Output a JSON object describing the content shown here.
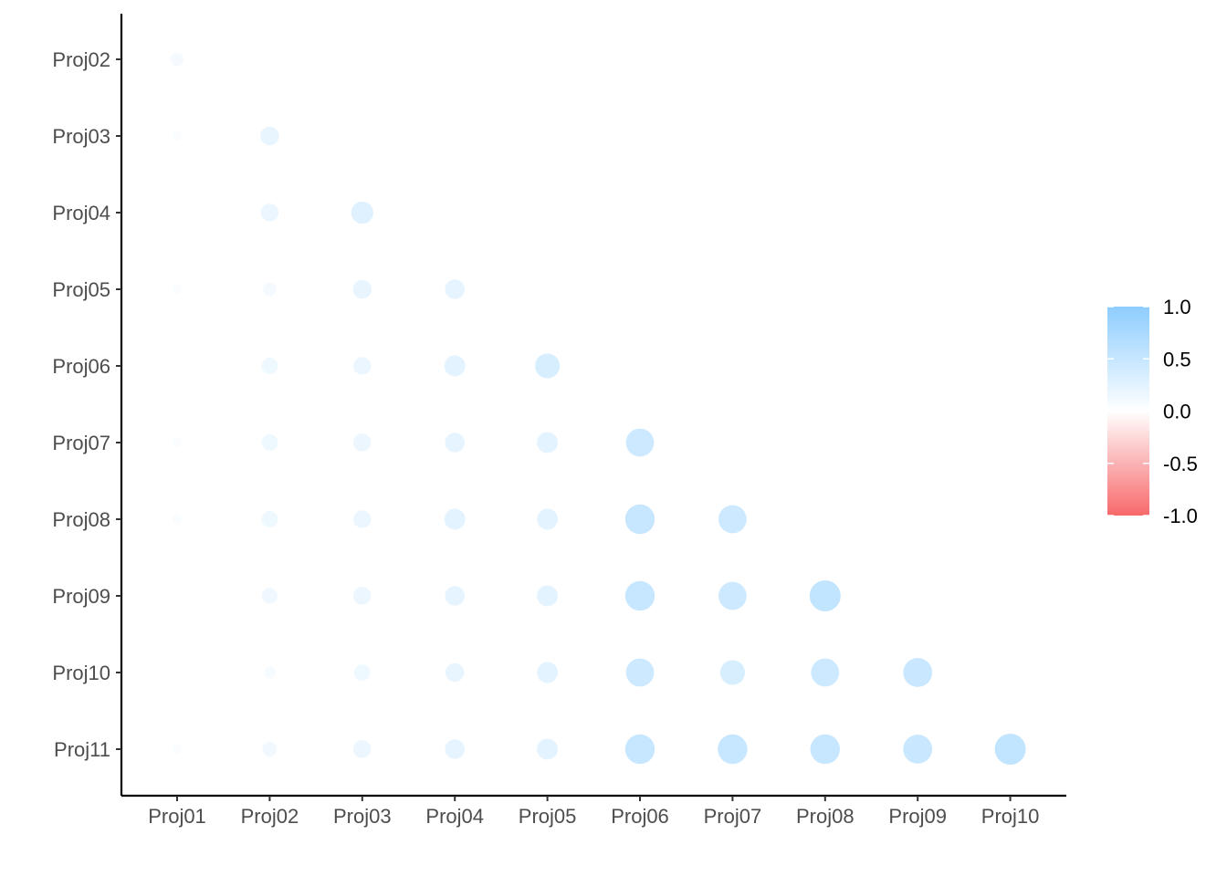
{
  "chart_data": {
    "type": "heatmap",
    "subtype": "correlation-bubble-lower-triangle",
    "x_categories": [
      "Proj01",
      "Proj02",
      "Proj03",
      "Proj04",
      "Proj05",
      "Proj06",
      "Proj07",
      "Proj08",
      "Proj09",
      "Proj10"
    ],
    "y_categories": [
      "Proj02",
      "Proj03",
      "Proj04",
      "Proj05",
      "Proj06",
      "Proj07",
      "Proj08",
      "Proj09",
      "Proj10",
      "Proj11"
    ],
    "values": [
      [
        0.1
      ],
      [
        0.05,
        0.2
      ],
      [
        0.02,
        0.18,
        0.28
      ],
      [
        0.05,
        0.1,
        0.2,
        0.22
      ],
      [
        0.03,
        0.15,
        0.18,
        0.25,
        0.35
      ],
      [
        0.05,
        0.15,
        0.18,
        0.22,
        0.25,
        0.45
      ],
      [
        0.05,
        0.15,
        0.18,
        0.25,
        0.25,
        0.5,
        0.45
      ],
      [
        0.01,
        0.14,
        0.18,
        0.22,
        0.25,
        0.5,
        0.45,
        0.55
      ],
      [
        0.01,
        0.08,
        0.15,
        0.2,
        0.25,
        0.45,
        0.35,
        0.45,
        0.48
      ],
      [
        0.05,
        0.12,
        0.18,
        0.22,
        0.25,
        0.5,
        0.5,
        0.5,
        0.48,
        0.55
      ]
    ],
    "color_scale": {
      "min": -1.0,
      "max": 1.0,
      "low_color": "#f8696b",
      "mid_color": "#ffffff",
      "high_color": "#8ecdff",
      "ticks": [
        "1.0",
        "0.5",
        "0.0",
        "-0.5",
        "-1.0"
      ]
    },
    "legend_position": "right",
    "grid": false
  }
}
